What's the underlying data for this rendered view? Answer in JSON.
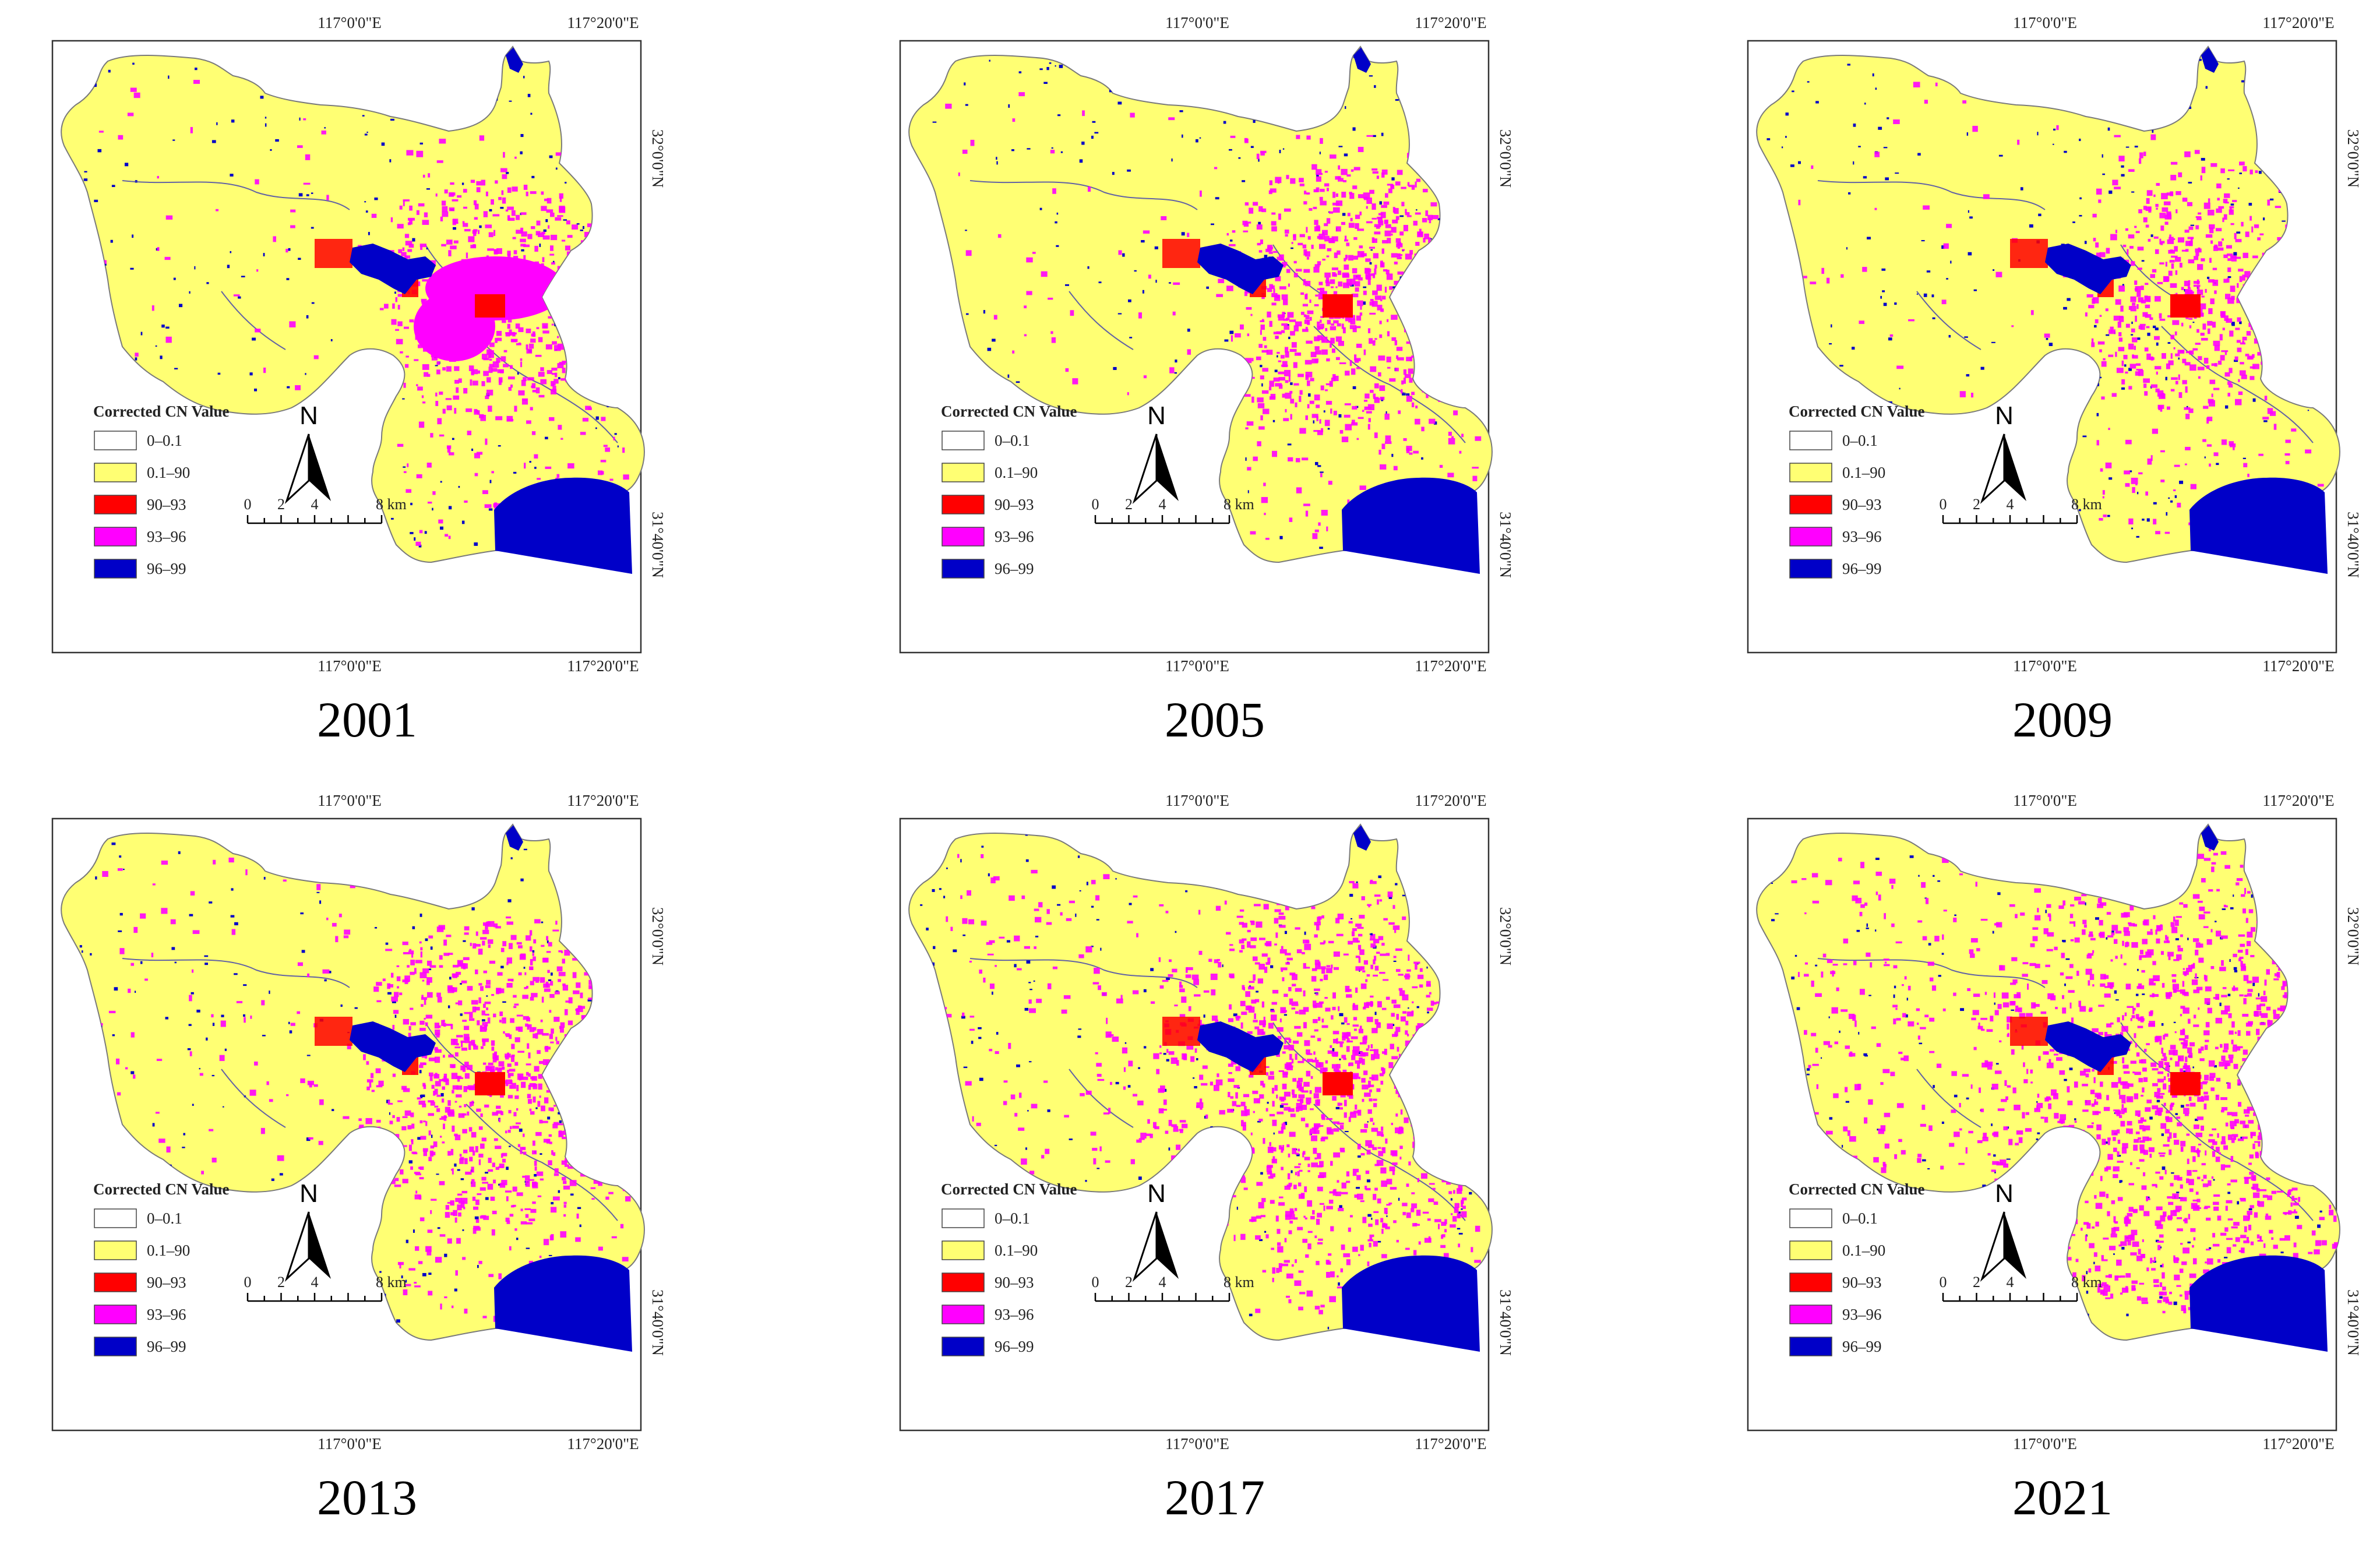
{
  "coordinates": {
    "lon_left": "117°0'0\"E",
    "lon_right": "117°20'0\"E",
    "lat_top": "32°0'0\"N",
    "lat_bottom": "31°40'0\"N"
  },
  "legend": {
    "title": "Corrected CN Value",
    "items": [
      {
        "label": "0–0.1",
        "color": "#ffffff"
      },
      {
        "label": "0.1–90",
        "color": "#ffff73"
      },
      {
        "label": "90–93",
        "color": "#ff0000"
      },
      {
        "label": "93–96",
        "color": "#ff00ff"
      },
      {
        "label": "96–99",
        "color": "#0000c8"
      }
    ]
  },
  "north_arrow": {
    "label": "N"
  },
  "scale_bar": {
    "ticks": [
      "0",
      "2",
      "4",
      "8 km"
    ]
  },
  "colors": {
    "land": "#ffff73",
    "water": "#0000c8",
    "impervious_high": "#ff00ff",
    "impervious_mid": "#ff0000"
  },
  "panels": [
    {
      "year": "2001",
      "urban_extent": 0.35
    },
    {
      "year": "2005",
      "urban_extent": 0.45
    },
    {
      "year": "2009",
      "urban_extent": 0.3
    },
    {
      "year": "2013",
      "urban_extent": 0.55
    },
    {
      "year": "2017",
      "urban_extent": 0.8
    },
    {
      "year": "2021",
      "urban_extent": 1.0
    }
  ]
}
